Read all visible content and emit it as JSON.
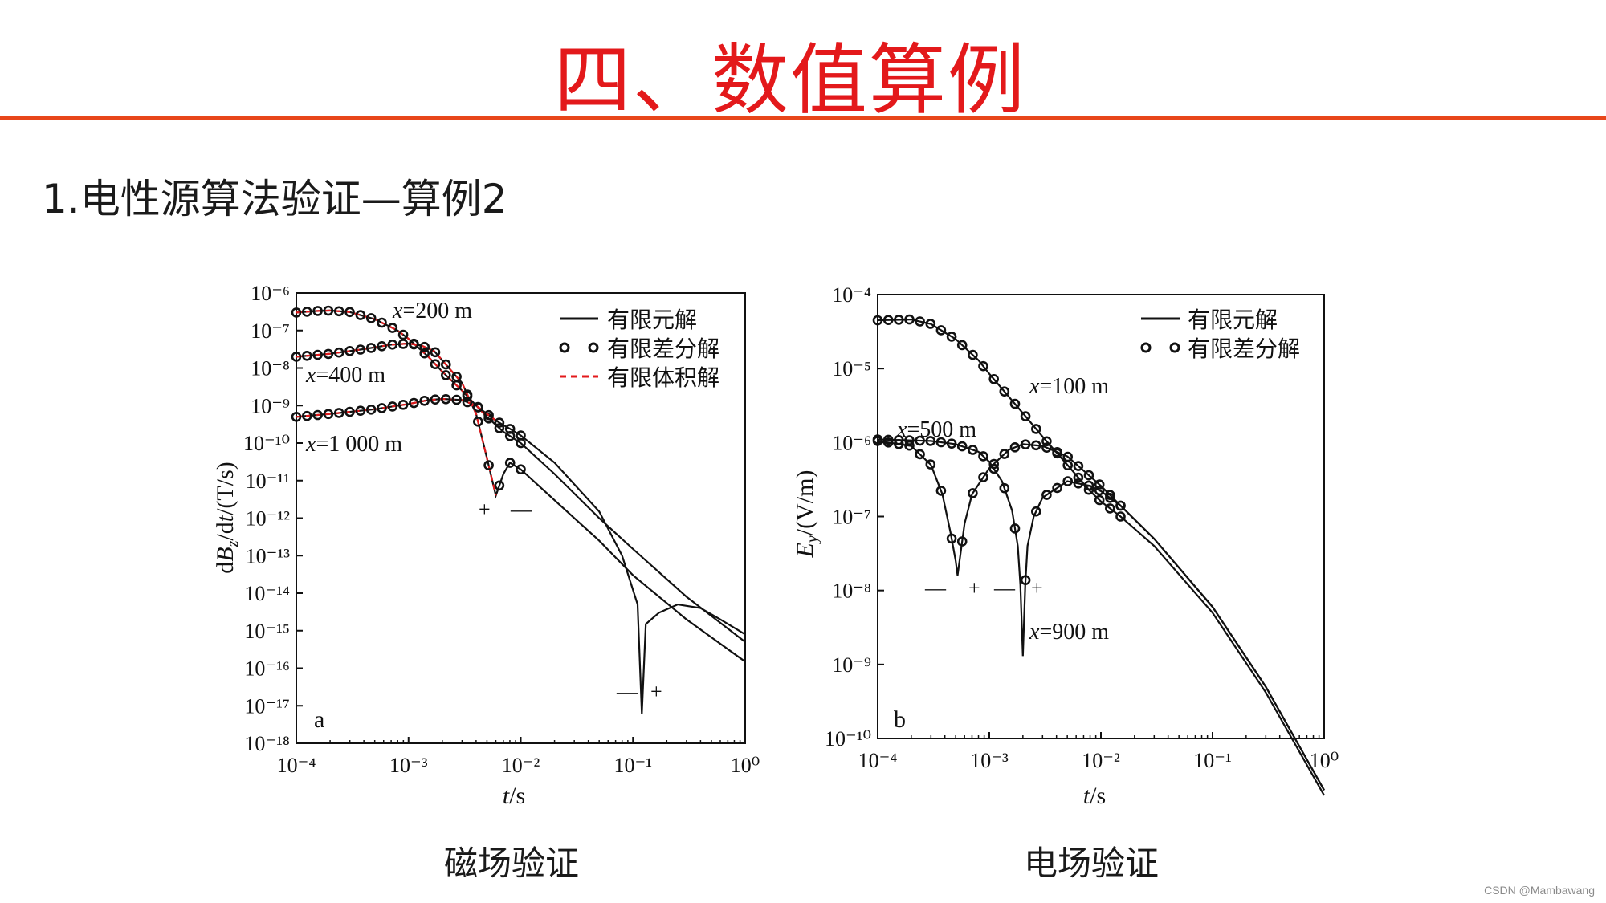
{
  "page": {
    "title": "四、数值算例",
    "section_heading": "1.电性源算法验证—算例2",
    "caption_left": "磁场验证",
    "caption_right": "电场验证",
    "watermark": "CSDN @Mambawang",
    "accent_color": "#e3191b",
    "rule_color": "#e8461a"
  },
  "chart_data": [
    {
      "type": "line",
      "panel_label": "a",
      "xlabel_var": "t",
      "xlabel_unit": "/s",
      "ylabel": "dBz/dt/(T/s)",
      "ylabel_parts": {
        "d": "d",
        "B": "B",
        "sub": "z",
        "mid": "/d",
        "t": "t",
        "unit": "/(T/s)"
      },
      "x_scale": "log",
      "y_scale": "log",
      "xlim_exp": [
        -4,
        0
      ],
      "ylim_exp": [
        -18,
        -6
      ],
      "x_ticks": [
        "10⁻⁴",
        "10⁻³",
        "10⁻²",
        "10⁻¹",
        "10⁰"
      ],
      "y_ticks": [
        "10⁻⁶",
        "10⁻⁷",
        "10⁻⁸",
        "10⁻⁹",
        "10⁻¹⁰",
        "10⁻¹¹",
        "10⁻¹²",
        "10⁻¹³",
        "10⁻¹⁴",
        "10⁻¹⁵",
        "10⁻¹⁶",
        "10⁻¹⁷",
        "10⁻¹⁸"
      ],
      "legend": {
        "placement": "top-right",
        "entries": [
          "有限元解",
          "有限差分解",
          "有限体积解"
        ]
      },
      "annotations": [
        {
          "text_var": "x",
          "text_rest": "=200 m"
        },
        {
          "text_var": "x",
          "text_rest": "=400 m"
        },
        {
          "text_var": "x",
          "text_rest": "=1 000 m"
        },
        {
          "text": "+"
        },
        {
          "text": "—"
        },
        {
          "text": "—"
        },
        {
          "text": "+"
        }
      ],
      "series": [
        {
          "name": "x=200 m",
          "t": [
            0.0001,
            0.00015,
            0.0002,
            0.0003,
            0.0005,
            0.0008,
            0.001,
            0.0015,
            0.002,
            0.003,
            0.005,
            0.007,
            0.01,
            0.02,
            0.05,
            0.1,
            0.3,
            1.0
          ],
          "value": [
            3e-07,
            3.3e-07,
            3.4e-07,
            3.1e-07,
            2e-07,
            1e-07,
            6e-08,
            2e-08,
            8e-09,
            2.5e-09,
            5e-10,
            2e-10,
            1e-10,
            1.5e-11,
            1e-12,
            1.5e-13,
            8e-15,
            5e-16
          ]
        },
        {
          "name": "x=400 m",
          "t": [
            0.0001,
            0.0002,
            0.0004,
            0.0007,
            0.001,
            0.0013,
            0.0017,
            0.002,
            0.003,
            0.004,
            0.005,
            0.006,
            0.007,
            0.008,
            0.01,
            0.02,
            0.05,
            0.1,
            0.3,
            1.0
          ],
          "value": [
            2e-08,
            2.4e-08,
            3.2e-08,
            4.2e-08,
            4.5e-08,
            4e-08,
            2.8e-08,
            1.6e-08,
            4e-09,
            6e-10,
            4e-11,
            4e-12,
            1.5e-11,
            3e-11,
            2e-11,
            3e-12,
            2.5e-13,
            3e-14,
            2e-15,
            1.5e-16
          ]
        },
        {
          "name": "x=1 000 m",
          "t": [
            0.0001,
            0.0002,
            0.0005,
            0.001,
            0.0015,
            0.002,
            0.003,
            0.004,
            0.005,
            0.006,
            0.007,
            0.008,
            0.01,
            0.02,
            0.05,
            0.08,
            0.11,
            0.12,
            0.13,
            0.17,
            0.25,
            0.4,
            0.6,
            1.0
          ],
          "value": [
            5e-10,
            6e-10,
            8e-10,
            1.1e-09,
            1.4e-09,
            1.5e-09,
            1.4e-09,
            1e-09,
            6e-10,
            4e-10,
            3e-10,
            2.4e-10,
            1.6e-10,
            3e-11,
            1.5e-12,
            1e-13,
            5e-15,
            6e-18,
            1.5e-15,
            3e-15,
            5e-15,
            4e-15,
            2e-15,
            8e-16
          ]
        }
      ]
    },
    {
      "type": "line",
      "panel_label": "b",
      "xlabel_var": "t",
      "xlabel_unit": "/s",
      "ylabel": "Ey/(V/m)",
      "ylabel_parts": {
        "E": "E",
        "sub": "y",
        "unit": "/(V/m)"
      },
      "x_scale": "log",
      "y_scale": "log",
      "xlim_exp": [
        -4,
        0
      ],
      "ylim_exp": [
        -10,
        -4
      ],
      "x_ticks": [
        "10⁻⁴",
        "10⁻³",
        "10⁻²",
        "10⁻¹",
        "10⁰"
      ],
      "y_ticks": [
        "10⁻⁴",
        "10⁻⁵",
        "10⁻⁶",
        "10⁻⁷",
        "10⁻⁸",
        "10⁻⁹",
        "10⁻¹⁰"
      ],
      "legend": {
        "placement": "top-right",
        "entries": [
          "有限元解",
          "有限差分解"
        ]
      },
      "annotations": [
        {
          "text_var": "x",
          "text_rest": "=100 m"
        },
        {
          "text_var": "x",
          "text_rest": "=500 m"
        },
        {
          "text_var": "x",
          "text_rest": "=900 m"
        },
        {
          "text": "—"
        },
        {
          "text": "+"
        },
        {
          "text": "—"
        },
        {
          "text": "+"
        }
      ],
      "series": [
        {
          "name": "x=100 m",
          "t": [
            0.0001,
            0.0002,
            0.0003,
            0.0005,
            0.0008,
            0.001,
            0.002,
            0.003,
            0.005,
            0.008,
            0.01,
            0.015,
            0.03,
            0.1,
            0.3,
            1.0
          ],
          "value": [
            4.5e-05,
            4.6e-05,
            4e-05,
            2.5e-05,
            1.3e-05,
            8.5e-06,
            2.5e-06,
            1.2e-06,
            5e-07,
            2.2e-07,
            1.6e-07,
            1e-07,
            4e-08,
            5e-09,
            4.2e-10,
            1.7e-11
          ]
        },
        {
          "name": "x=500 m",
          "t": [
            0.0001,
            0.0002,
            0.0003,
            0.00038,
            0.00045,
            0.0005,
            0.00052,
            0.00055,
            0.0006,
            0.0007,
            0.001,
            0.0015,
            0.002,
            0.003,
            0.005,
            0.008,
            0.01,
            0.015,
            0.03,
            0.1,
            0.3,
            1.0
          ],
          "value": [
            1.05e-06,
            9e-07,
            5e-07,
            2e-07,
            6e-08,
            2.5e-08,
            1.6e-08,
            3e-08,
            8e-08,
            2e-07,
            4.5e-07,
            8e-07,
            9.5e-07,
            9e-07,
            6.5e-07,
            3.5e-07,
            2.6e-07,
            1.4e-07,
            5e-08,
            6e-09,
            5e-10,
            2e-11
          ]
        },
        {
          "name": "x=900 m",
          "t": [
            0.0001,
            0.0003,
            0.0005,
            0.0008,
            0.001,
            0.0013,
            0.0016,
            0.0018,
            0.0019,
            0.002,
            0.0021,
            0.0022,
            0.0025,
            0.003,
            0.005,
            0.008,
            0.01,
            0.015,
            0.03,
            0.1,
            0.3,
            1.0
          ],
          "value": [
            1.1e-06,
            1.05e-06,
            9.5e-07,
            7.5e-07,
            5.5e-07,
            3e-07,
            1.2e-07,
            4e-08,
            1.2e-08,
            1.3e-09,
            1.2e-08,
            4e-08,
            1e-07,
            1.8e-07,
            3e-07,
            2.6e-07,
            2.2e-07,
            1.4e-07,
            5e-08,
            6e-09,
            5e-10,
            2e-11
          ]
        }
      ]
    }
  ]
}
